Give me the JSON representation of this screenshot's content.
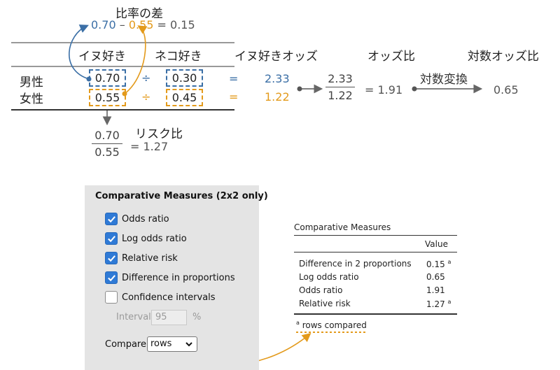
{
  "top": {
    "diff_title": "比率の差",
    "diff_expr": {
      "a": "0.70",
      "minus": "–",
      "b": "0.55",
      "eq": "= 0.15"
    },
    "col_cat": "イヌ好き",
    "col_dog": "ネコ好き",
    "col_odds": "イヌ好きオッズ",
    "col_odds_ratio": "オッズ比",
    "col_log_odds_ratio": "対数オッズ比",
    "row_male": "男性",
    "row_female": "女性",
    "male_p_dog": "0.70",
    "male_p_cat": "0.30",
    "female_p_dog": "0.55",
    "female_p_cat": "0.45",
    "div": "÷",
    "eq": "=",
    "male_odds": "2.33",
    "female_odds": "1.22",
    "or_num": "2.33",
    "or_den": "1.22",
    "or_eq": "= 1.91",
    "log_transform": "対数変換",
    "log_value": "0.65",
    "risk_num": "0.70",
    "risk_den": "0.55",
    "risk_eq": "= 1.27",
    "risk_title": "リスク比"
  },
  "panel": {
    "title": "Comparative Measures (2x2 only)",
    "options": [
      {
        "label": "Odds ratio",
        "checked": true
      },
      {
        "label": "Log odds ratio",
        "checked": true
      },
      {
        "label": "Relative risk",
        "checked": true
      },
      {
        "label": "Difference in proportions",
        "checked": true
      },
      {
        "label": "Confidence intervals",
        "checked": false
      }
    ],
    "interval_label": "Interval",
    "interval_value": "95",
    "interval_unit": "%",
    "compare_label": "Compare",
    "compare_value": "rows"
  },
  "results": {
    "title": "Comparative Measures",
    "header_value": "Value",
    "rows": [
      {
        "label": "Difference in 2 proportions",
        "value": "0.15",
        "note": "a"
      },
      {
        "label": "Log odds ratio",
        "value": "0.65",
        "note": ""
      },
      {
        "label": "Odds ratio",
        "value": "1.91",
        "note": ""
      },
      {
        "label": "Relative risk",
        "value": "1.27",
        "note": "a"
      }
    ],
    "footnote_mark": "a",
    "footnote_text": " rows compared"
  },
  "colors": {
    "blue": "#3b6fa6",
    "orange": "#e39a1b",
    "text": "#222222",
    "panel_bg": "#e4e4e4",
    "checkbox": "#2f7ad6"
  }
}
